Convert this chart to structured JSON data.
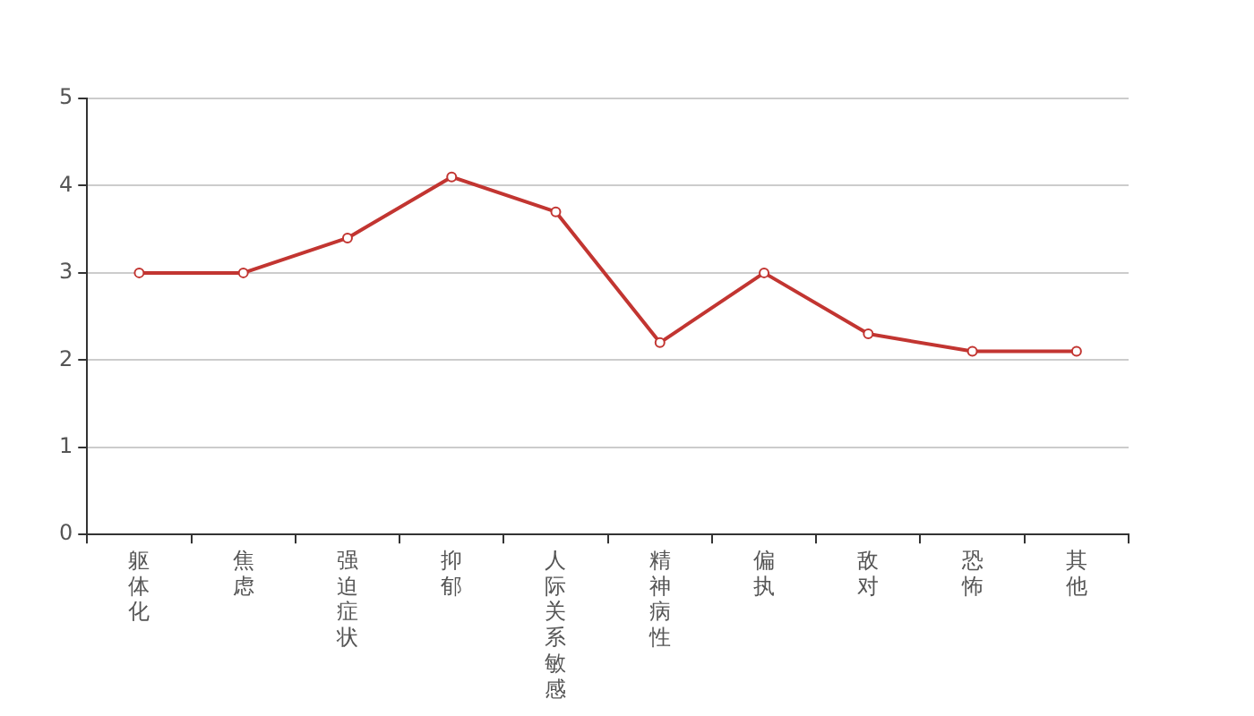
{
  "chart_data": {
    "type": "line",
    "categories": [
      "躯体化",
      "焦虑",
      "强迫症状",
      "抑郁",
      "人际关系敏感",
      "精神病性",
      "偏执",
      "敌对",
      "恐怖",
      "其他"
    ],
    "series": [
      {
        "color": "#c23531",
        "values": [
          3.0,
          3.0,
          3.4,
          4.1,
          3.7,
          2.2,
          3.0,
          2.3,
          2.1,
          2.1
        ]
      }
    ],
    "ylim": [
      0,
      5
    ],
    "yticks": [
      0,
      1,
      2,
      3,
      4,
      5
    ],
    "grid": "y",
    "legend": false,
    "marker": "circle",
    "line_style": "solid"
  }
}
